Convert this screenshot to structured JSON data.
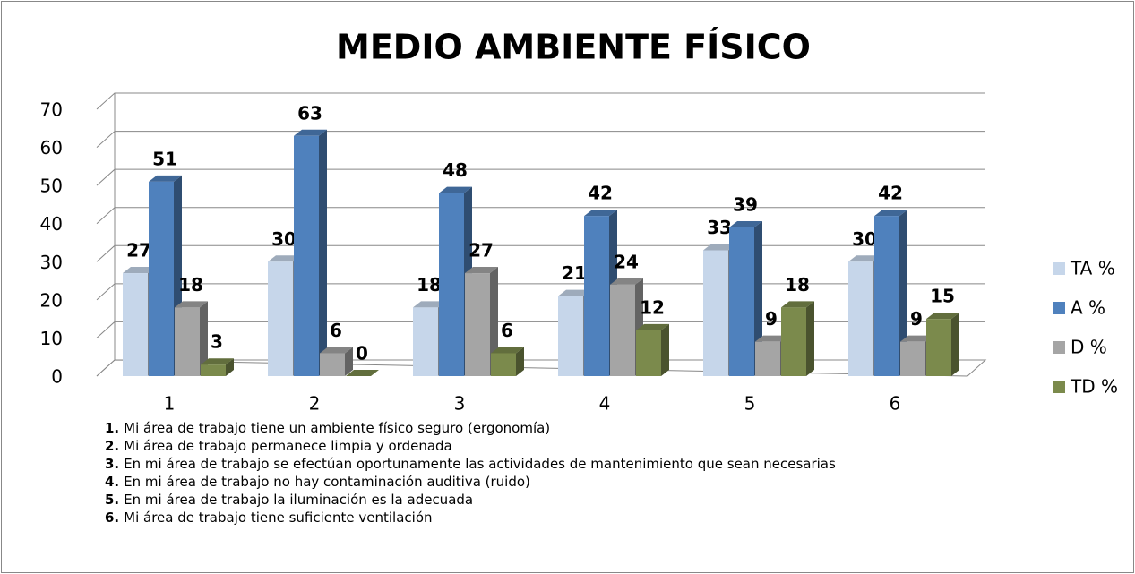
{
  "chart_data": {
    "type": "bar3d",
    "title": "MEDIO AMBIENTE FÍSICO",
    "categories": [
      "1",
      "2",
      "3",
      "4",
      "5",
      "6"
    ],
    "series": [
      {
        "name": "TA %",
        "color": "#c6d6ea",
        "values": [
          27,
          30,
          18,
          21,
          33,
          30
        ]
      },
      {
        "name": "A %",
        "color": "#4f81bd",
        "values": [
          51,
          63,
          48,
          42,
          39,
          42
        ]
      },
      {
        "name": "D %",
        "color": "#a5a5a5",
        "values": [
          18,
          6,
          27,
          24,
          9,
          9
        ]
      },
      {
        "name": "TD %",
        "color": "#7b8a4c",
        "values": [
          3,
          0,
          6,
          12,
          18,
          15
        ]
      }
    ],
    "ylim": [
      0,
      70
    ],
    "yticks": [
      0,
      10,
      20,
      30,
      40,
      50,
      60,
      70
    ],
    "grid": true,
    "legend": "right",
    "notes": [
      {
        "number": "1.",
        "text": "Mi área de trabajo tiene un ambiente físico seguro (ergonomía)"
      },
      {
        "number": "2.",
        "text": "Mi área de trabajo permanece limpia y ordenada"
      },
      {
        "number": "3.",
        "text": "En mi área de trabajo se efectúan oportunamente las actividades de mantenimiento que sean necesarias"
      },
      {
        "number": "4.",
        "text": "En mi área de trabajo no hay contaminación auditiva (ruido)"
      },
      {
        "number": "5.",
        "text": "En mi área de trabajo la iluminación es la adecuada"
      },
      {
        "number": "6.",
        "text": "Mi área de trabajo tiene suficiente ventilación"
      }
    ]
  }
}
